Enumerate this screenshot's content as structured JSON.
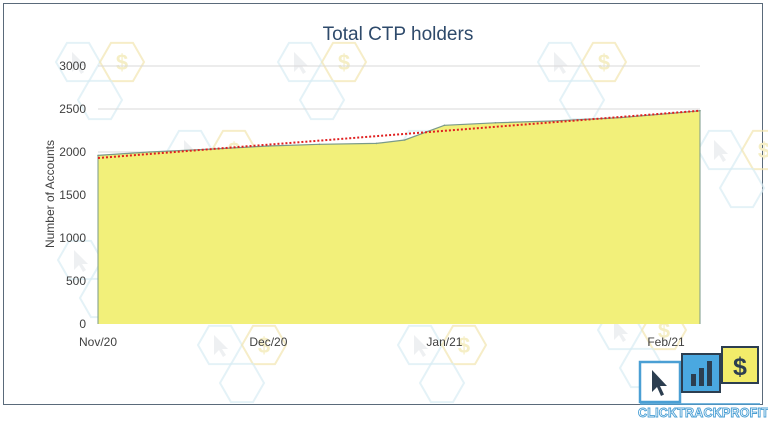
{
  "chart_data": {
    "type": "area",
    "title": "Total CTP holders",
    "ylabel": "Number of Accounts",
    "xlabel": "",
    "ylim": [
      0,
      3000
    ],
    "yticks": [
      0,
      500,
      1000,
      1500,
      2000,
      2500,
      3000
    ],
    "x_tick_labels": [
      "Nov/20",
      "Dec/20",
      "Jan/21",
      "Feb/21"
    ],
    "x_start": "2020-11-01",
    "x_end": "2021-02-15",
    "grid": "horizontal",
    "legend": "none",
    "series": [
      {
        "x": [
          "2020-11-01",
          "2020-11-10",
          "2020-11-20",
          "2020-12-01",
          "2020-12-10",
          "2020-12-20",
          "2020-12-25",
          "2021-01-01",
          "2021-01-10",
          "2021-01-20",
          "2021-02-01",
          "2021-02-10",
          "2021-02-15"
        ],
        "values": [
          1960,
          2000,
          2030,
          2070,
          2090,
          2100,
          2140,
          2310,
          2340,
          2360,
          2400,
          2450,
          2480
        ]
      }
    ],
    "trendline": {
      "style": "dotted",
      "color": "#e02020",
      "start": 1930,
      "end": 2480
    },
    "colors": {
      "fill": "#f2f07a",
      "line": "#7a9a8a",
      "grid": "#d9d9d9",
      "trend": "#e02020"
    }
  },
  "logo": {
    "text": "CLICKTRACKPROFIT",
    "name": "clicktrackprofit-logo"
  }
}
